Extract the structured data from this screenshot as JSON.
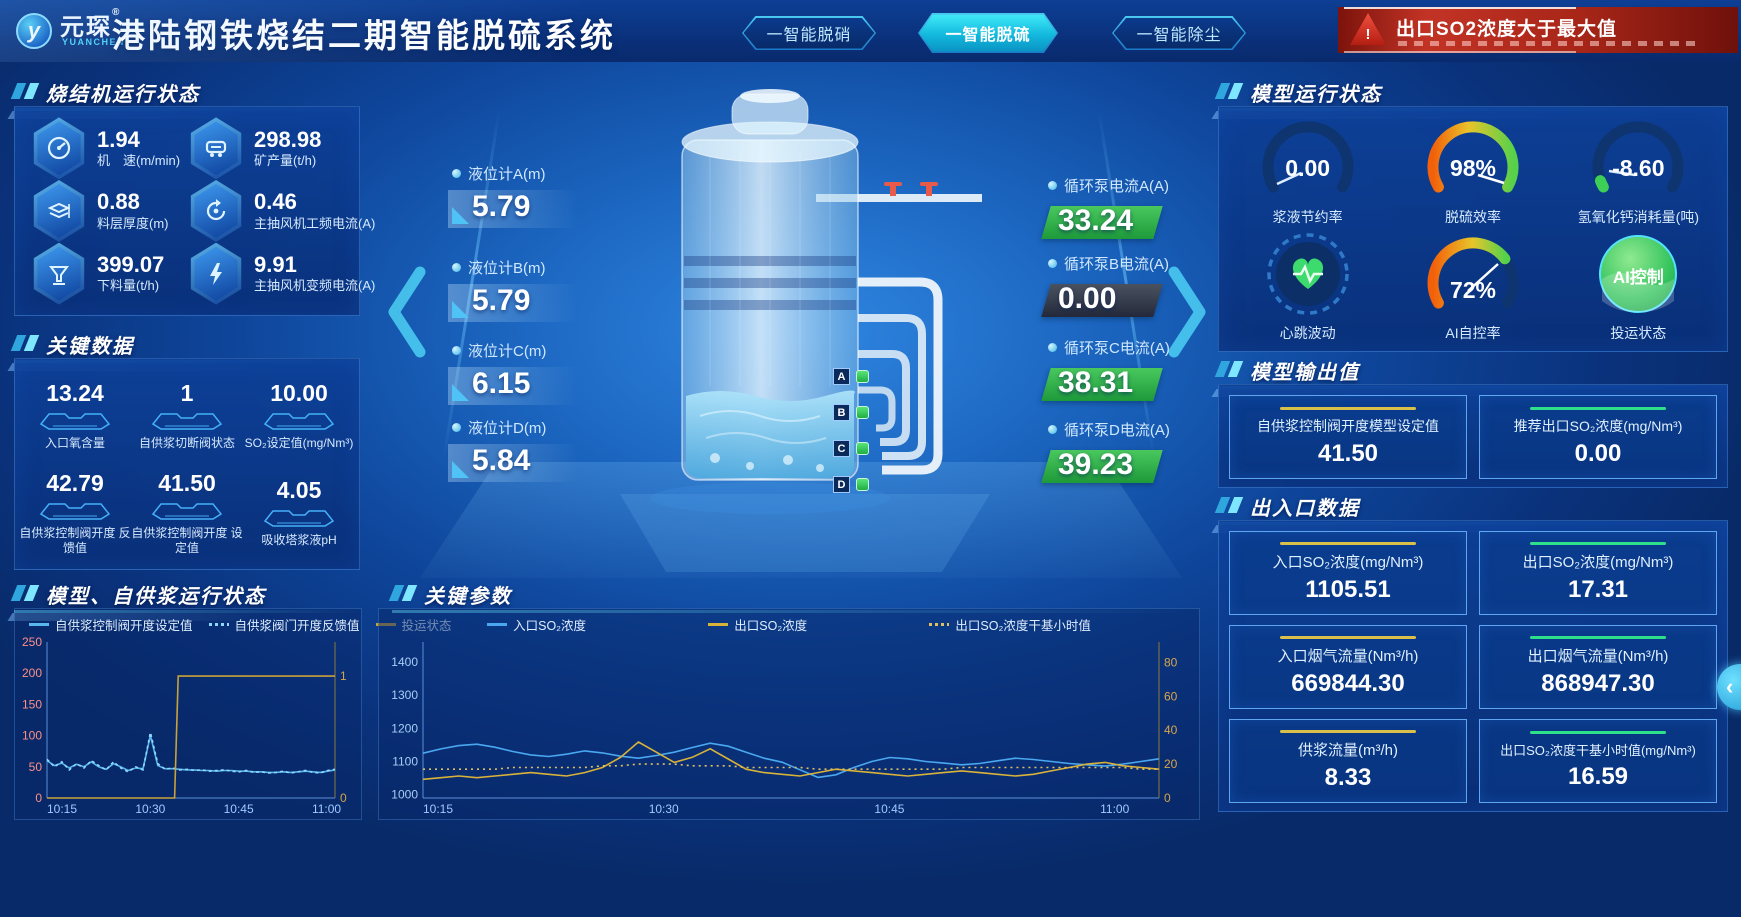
{
  "header": {
    "logo": {
      "glyph": "y",
      "brand": "元琛",
      "reg": "®",
      "sub": "YUANCHEN"
    },
    "title": "港陆钢铁烧结二期智能脱硫系统",
    "nav": [
      {
        "label": "一智能脱硝"
      },
      {
        "label": "一智能脱硫"
      },
      {
        "label": "一智能除尘"
      }
    ],
    "alert": "出口SO2浓度大于最大值",
    "alert_icon": "!"
  },
  "side_button": {
    "glyph": "‹"
  },
  "panels": {
    "sinter": {
      "title": "烧结机运行状态",
      "items": [
        {
          "icon": "speedometer-icon",
          "value": "1.94",
          "label": "机　速(m/min)"
        },
        {
          "icon": "ore-cart-icon",
          "value": "298.98",
          "label": "矿产量(t/h)"
        },
        {
          "icon": "layers-icon",
          "value": "0.88",
          "label": "料层厚度(m)"
        },
        {
          "icon": "fan-cycle-icon",
          "value": "0.46",
          "label": "主抽风机工频电流(A)"
        },
        {
          "icon": "hopper-icon",
          "value": "399.07",
          "label": "下料量(t/h)"
        },
        {
          "icon": "lightning-icon",
          "value": "9.91",
          "label": "主抽风机变频电流(A)"
        }
      ]
    },
    "keydata": {
      "title": "关键数据",
      "items": [
        {
          "value": "13.24",
          "label": "入口氧含量"
        },
        {
          "value": "1",
          "label": "自供浆切断阀状态"
        },
        {
          "value": "10.00",
          "label": "SO₂设定值(mg/Nm³)"
        },
        {
          "value": "42.79",
          "label": "自供浆控制阀开度 反馈值"
        },
        {
          "value": "41.50",
          "label": "自供浆控制阀开度 设定值"
        },
        {
          "value": "4.05",
          "label": "吸收塔浆液pH"
        }
      ]
    },
    "model_status": {
      "title": "模型运行状态",
      "cells": [
        {
          "value": "0.00",
          "label": "浆液节约率"
        },
        {
          "value": "98%",
          "label": "脱硫效率"
        },
        {
          "value": "-8.60",
          "label": "氢氧化钙消耗量(吨)"
        },
        {
          "value": "",
          "label": "心跳波动"
        },
        {
          "value": "72%",
          "label": "AI自控率"
        },
        {
          "value": "AI控制",
          "label": "投运状态"
        }
      ]
    },
    "model_output": {
      "title": "模型输出值",
      "cards": [
        {
          "label": "自供浆控制阀开度模型设定值",
          "value": "41.50",
          "accent": "#d8c04a"
        },
        {
          "label": "推荐出口SO₂浓度(mg/Nm³)",
          "value": "0.00",
          "accent": "#2ee08a"
        }
      ]
    },
    "io": {
      "title": "出入口数据",
      "cards": [
        {
          "label": "入口SO₂浓度(mg/Nm³)",
          "value": "1105.51",
          "accent": "#d8c04a"
        },
        {
          "label": "出口SO₂浓度(mg/Nm³)",
          "value": "17.31",
          "accent": "#2ee08a"
        },
        {
          "label": "入口烟气流量(Nm³/h)",
          "value": "669844.30",
          "accent": "#d8c04a"
        },
        {
          "label": "出口烟气流量(Nm³/h)",
          "value": "868947.30",
          "accent": "#2ee08a"
        },
        {
          "label": "供浆流量(m³/h)",
          "value": "8.33",
          "accent": "#d8c04a"
        },
        {
          "label": "出口SO₂浓度干基小时值(mg/Nm³)",
          "value": "16.59",
          "accent": "#2ee08a"
        }
      ]
    }
  },
  "tower": {
    "levels": [
      {
        "label": "液位计A(m)",
        "value": "5.79"
      },
      {
        "label": "液位计B(m)",
        "value": "5.79"
      },
      {
        "label": "液位计C(m)",
        "value": "6.15"
      },
      {
        "label": "液位计D(m)",
        "value": "5.84"
      }
    ],
    "pumps": [
      {
        "label": "循环泵电流A(A)",
        "value": "33.24",
        "status": "on"
      },
      {
        "label": "循环泵B电流(A)",
        "value": "0.00",
        "status": "off"
      },
      {
        "label": "循环泵C电流(A)",
        "value": "38.31",
        "status": "on"
      },
      {
        "label": "循环泵D电流(A)",
        "value": "39.23",
        "status": "on"
      }
    ],
    "valves": [
      "A",
      "B",
      "C",
      "D"
    ]
  },
  "colors": {
    "accent_cyan": "#35d0f0",
    "ok_green": "#2fbf4e",
    "off_dark": "#3c4350",
    "alert_red": "#c0271c"
  },
  "chart_data": [
    {
      "type": "line",
      "title": "模型、自供浆运行状态",
      "x_ticks": [
        "10:15",
        "10:30",
        "10:45",
        "11:00"
      ],
      "y_left": {
        "ticks": [
          250,
          200,
          150,
          100,
          50,
          0
        ],
        "min": 0,
        "max": 250,
        "color": "#ff8f87"
      },
      "y_right": {
        "ticks": [
          1,
          0
        ],
        "min": 0,
        "max": 1.28,
        "color": "#d9a54a"
      },
      "grid": false,
      "legend_position": "top",
      "series": [
        {
          "name": "自供浆控制阀开度设定值",
          "axis": "left",
          "color": "#59b7f0",
          "dash": "",
          "values": [
            60,
            52,
            56,
            48,
            54,
            50,
            58,
            50,
            46,
            55,
            50,
            44,
            48,
            47,
            100,
            52,
            47,
            47,
            46,
            45,
            45,
            44,
            44,
            43,
            44,
            44,
            43,
            43,
            42,
            42,
            41,
            41,
            42,
            41,
            42,
            43,
            42,
            41,
            43,
            45
          ]
        },
        {
          "name": "自供浆阀门开度反馈值",
          "axis": "left",
          "color": "#8fd9ff",
          "dash": "3,3",
          "values": [
            62,
            50,
            58,
            45,
            55,
            48,
            60,
            52,
            45,
            58,
            48,
            42,
            50,
            45,
            105,
            55,
            46,
            48,
            45,
            46,
            44,
            45,
            43,
            44,
            45,
            43,
            42,
            44,
            41,
            42,
            40,
            41,
            43,
            40,
            42,
            44,
            41,
            40,
            44,
            46
          ]
        },
        {
          "name": "投运状态",
          "axis": "right",
          "color": "#c9a23a",
          "dash": "",
          "values": [
            0,
            0,
            0,
            0,
            0,
            0,
            0,
            0,
            0,
            0,
            0,
            0,
            0,
            0,
            0,
            0,
            0,
            0,
            0,
            0,
            0,
            0,
            0,
            0,
            0,
            0,
            0,
            0,
            0,
            0,
            0,
            0,
            0,
            0,
            0,
            0,
            1,
            1,
            1,
            1,
            1,
            1,
            1,
            1,
            1,
            1,
            1,
            1,
            1,
            1,
            1,
            1,
            1,
            1,
            1,
            1,
            1,
            1,
            1,
            1,
            1,
            1,
            1,
            1,
            1,
            1,
            1,
            1,
            1,
            1,
            1,
            1,
            1,
            1,
            1,
            1,
            1,
            1,
            1,
            1
          ]
        }
      ]
    },
    {
      "type": "line",
      "title": "关键参数",
      "x_ticks": [
        "10:15",
        "10:30",
        "10:45",
        "11:00"
      ],
      "y_left": {
        "ticks": [
          1400,
          1300,
          1200,
          1100,
          1000
        ],
        "min": 990,
        "max": 1460,
        "color": "#a8cdf5"
      },
      "y_right": {
        "ticks": [
          80,
          60,
          40,
          20,
          0
        ],
        "min": 0,
        "max": 92,
        "color": "#d9a54a"
      },
      "grid": false,
      "legend_position": "top",
      "series": [
        {
          "name": "入口SO₂浓度",
          "axis": "left",
          "color": "#4aa8f0",
          "dash": "",
          "values": [
            1125,
            1138,
            1148,
            1152,
            1143,
            1130,
            1120,
            1115,
            1122,
            1132,
            1126,
            1116,
            1110,
            1118,
            1128,
            1142,
            1155,
            1146,
            1128,
            1110,
            1098,
            1075,
            1052,
            1060,
            1082,
            1100,
            1112,
            1108,
            1100,
            1095,
            1090,
            1094,
            1102,
            1110,
            1106,
            1100,
            1094,
            1090,
            1086,
            1092,
            1100,
            1108
          ]
        },
        {
          "name": "出口SO₂浓度",
          "axis": "right",
          "color": "#d9b23a",
          "dash": "",
          "values": [
            11,
            12,
            13,
            12,
            13,
            14,
            15,
            14,
            13,
            15,
            18,
            24,
            33,
            27,
            21,
            24,
            29,
            23,
            17,
            15,
            14,
            13,
            15,
            17,
            16,
            15,
            14,
            13,
            14,
            15,
            16,
            15,
            14,
            13,
            14,
            16,
            18,
            20,
            21,
            19,
            18,
            17
          ]
        },
        {
          "name": "出口SO₂浓度干基小时值",
          "axis": "right",
          "color": "#e0c060",
          "dash": "2,4",
          "values": [
            17,
            17,
            17,
            17,
            17,
            18,
            18,
            18,
            18,
            18,
            19,
            19,
            20,
            20,
            20,
            19,
            19,
            19,
            18,
            18,
            18,
            18,
            17,
            17,
            17,
            17,
            17,
            17,
            17,
            17,
            18,
            18,
            18,
            18,
            18,
            18,
            18,
            18,
            18,
            18,
            17,
            17
          ]
        }
      ]
    }
  ]
}
